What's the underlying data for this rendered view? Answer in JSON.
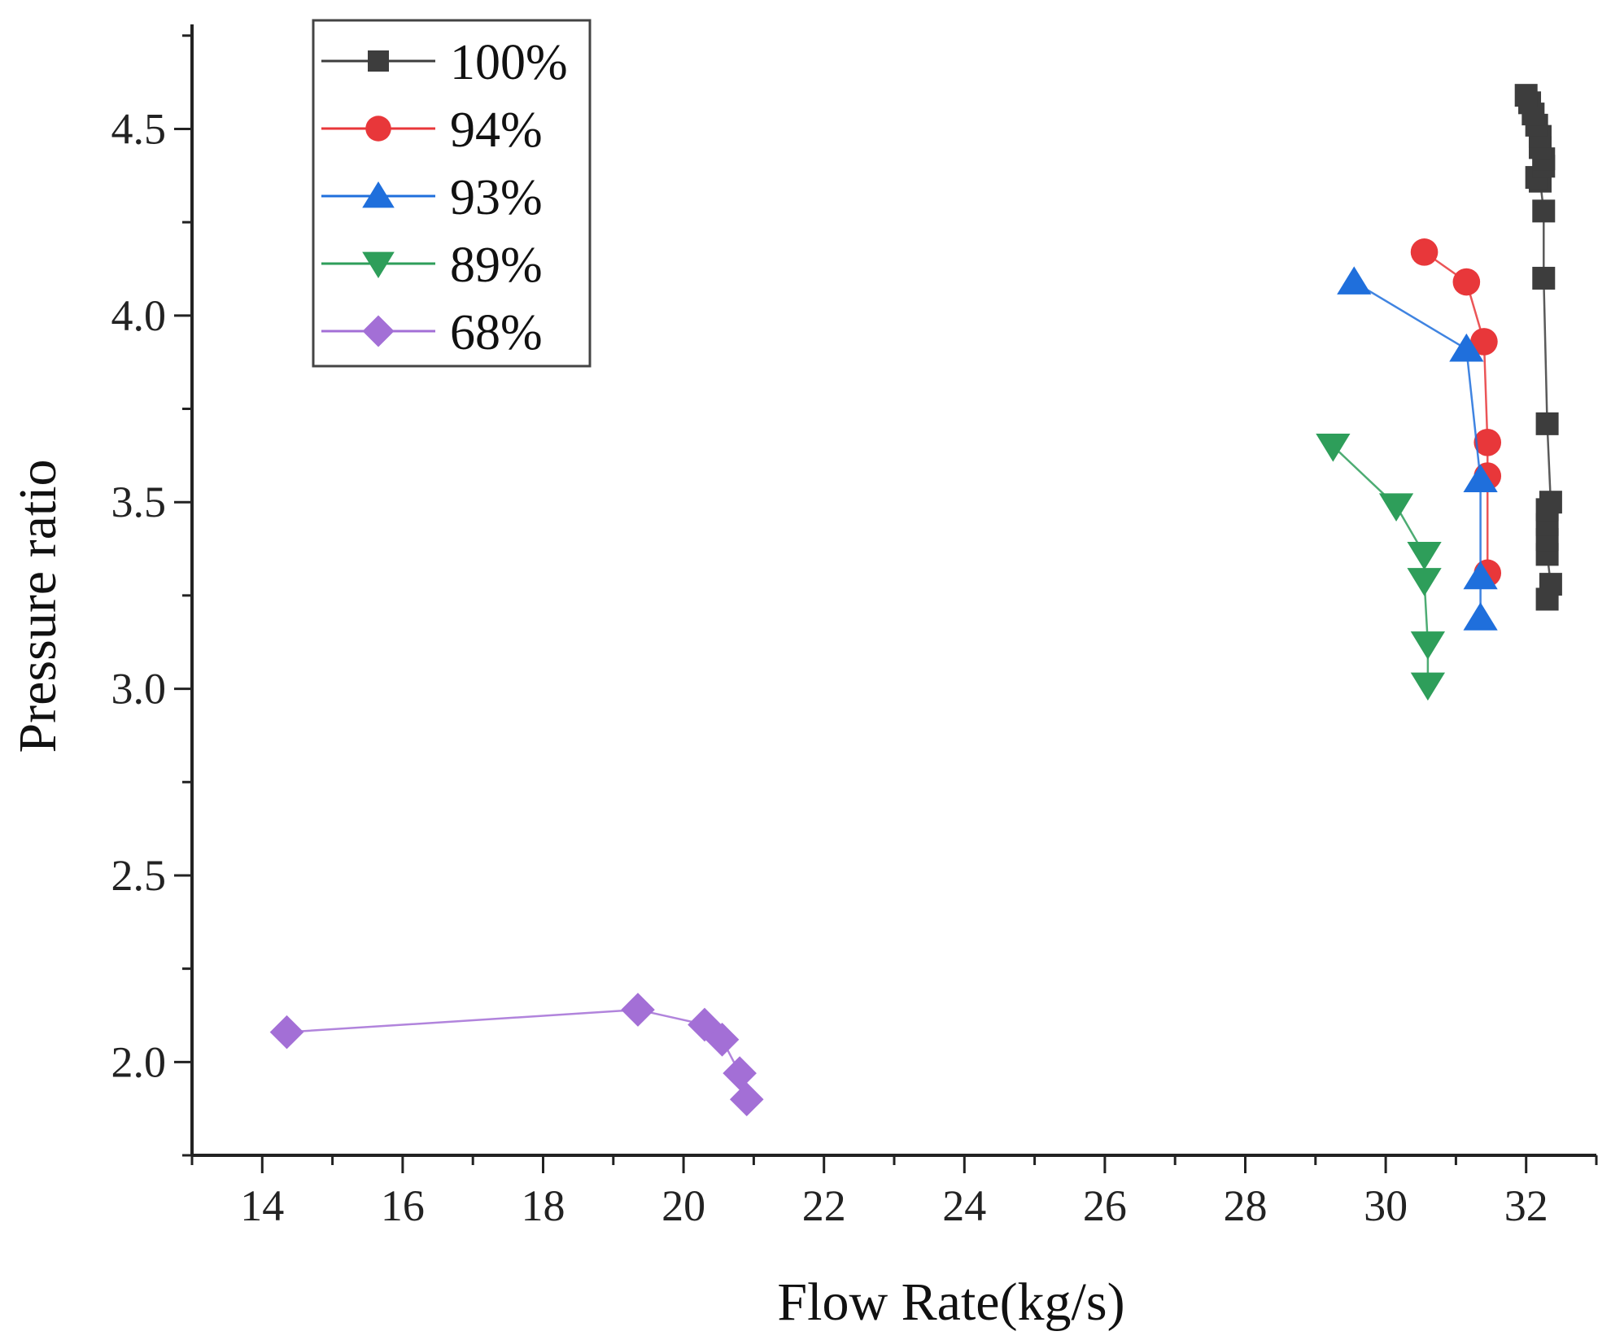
{
  "chart_data": {
    "type": "line",
    "title": "",
    "xlabel": "Flow Rate(kg/s)",
    "ylabel": "Pressure ratio",
    "xlim": [
      13,
      33
    ],
    "ylim": [
      1.75,
      4.78
    ],
    "xticks": [
      14,
      16,
      18,
      20,
      22,
      24,
      26,
      28,
      30,
      32
    ],
    "yticks": [
      2.0,
      2.5,
      3.0,
      3.5,
      4.0,
      4.5
    ],
    "xtick_labels": [
      "14",
      "16",
      "18",
      "20",
      "22",
      "24",
      "26",
      "28",
      "30",
      "32"
    ],
    "ytick_labels": [
      "2.0",
      "2.5",
      "3.0",
      "3.5",
      "4.0",
      "4.5"
    ],
    "grid": false,
    "legend_position": "top-left",
    "series": [
      {
        "name": "100%",
        "color": "#3d3d3d",
        "marker": "square",
        "x": [
          32.3,
          32.35,
          32.3,
          32.3,
          32.3,
          32.3,
          32.35,
          32.3,
          32.25,
          32.25,
          32.2,
          32.15,
          32.25,
          32.25,
          32.2,
          32.2,
          32.15,
          32.1,
          32.05,
          32.0
        ],
        "y": [
          3.24,
          3.28,
          3.36,
          3.4,
          3.44,
          3.48,
          3.5,
          3.71,
          4.1,
          4.28,
          4.36,
          4.37,
          4.4,
          4.42,
          4.45,
          4.48,
          4.51,
          4.54,
          4.57,
          4.59
        ]
      },
      {
        "name": "94%",
        "color": "#e8373a",
        "marker": "circle",
        "x": [
          31.45,
          31.45,
          31.45,
          31.4,
          31.15,
          30.55
        ],
        "y": [
          3.31,
          3.57,
          3.66,
          3.93,
          4.09,
          4.17
        ]
      },
      {
        "name": "93%",
        "color": "#1f6fdc",
        "marker": "triangle-up",
        "x": [
          31.35,
          31.35,
          31.35,
          31.15,
          29.55
        ],
        "y": [
          3.19,
          3.3,
          3.56,
          3.91,
          4.09
        ]
      },
      {
        "name": "89%",
        "color": "#2e9e5a",
        "marker": "triangle-down",
        "x": [
          30.6,
          30.6,
          30.55,
          30.55,
          30.15,
          29.25
        ],
        "y": [
          3.01,
          3.12,
          3.29,
          3.36,
          3.49,
          3.65
        ]
      },
      {
        "name": "68%",
        "color": "#a36fd6",
        "marker": "diamond",
        "x": [
          14.35,
          19.35,
          20.3,
          20.55,
          20.8,
          20.9
        ],
        "y": [
          2.08,
          2.14,
          2.1,
          2.06,
          1.97,
          1.9
        ]
      }
    ]
  }
}
